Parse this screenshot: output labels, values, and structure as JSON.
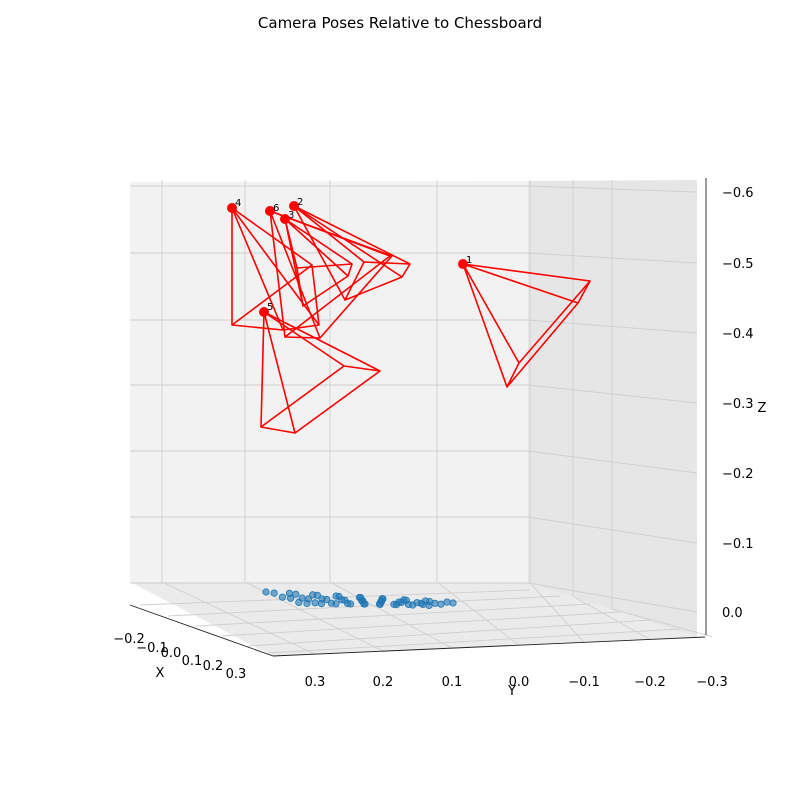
{
  "chart_data": {
    "type": "scatter",
    "title": "Camera Poses Relative to Chessboard",
    "xlabel": "X",
    "ylabel": "Y",
    "zlabel": "Z",
    "x_ticks": [
      "−0.2",
      "−0.1",
      "0.0",
      "0.1",
      "0.2",
      "0.3"
    ],
    "y_ticks": [
      "0.3",
      "0.2",
      "0.1",
      "0.0",
      "−0.1",
      "−0.2",
      "−0.3"
    ],
    "z_ticks": [
      "−0.6",
      "−0.5",
      "−0.4",
      "−0.3",
      "−0.2",
      "−0.1",
      "0.0"
    ],
    "z_inverted": true,
    "grid": true,
    "colors": {
      "camera": "#ff0000",
      "chessboard_points": "#1f77b4"
    },
    "chessboard": {
      "marker": "circle",
      "color": "#1f77b4",
      "rows": 6,
      "cols": 9,
      "z": 0.0
    },
    "cameras": [
      {
        "label": "1",
        "center_z": -0.5
      },
      {
        "label": "2",
        "center_z": -0.6
      },
      {
        "label": "3",
        "center_z": -0.57
      },
      {
        "label": "4",
        "center_z": -0.6
      },
      {
        "label": "5",
        "center_z": -0.43
      },
      {
        "label": "6",
        "center_z": -0.59
      }
    ]
  }
}
